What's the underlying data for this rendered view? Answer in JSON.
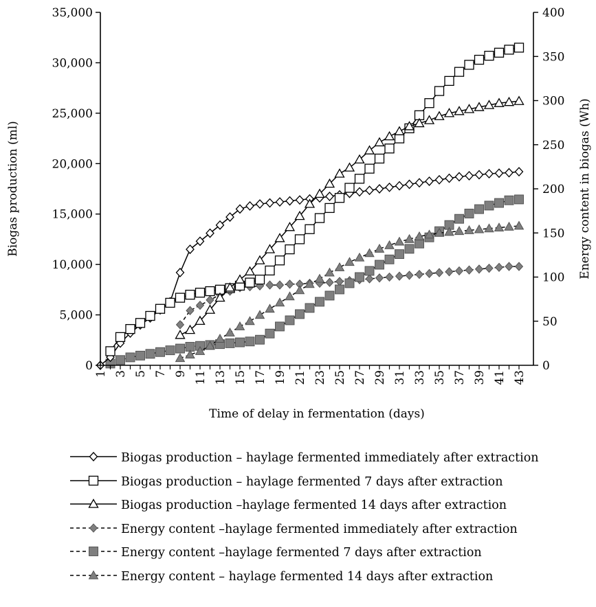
{
  "chart_data": {
    "type": "line",
    "title": "",
    "xlabel": "Time of delay in fermentation (days)",
    "ylabel_left": "Biogas production (ml)",
    "ylabel_right": "Energy content in biogas (Wh)",
    "x": [
      1,
      2,
      3,
      4,
      5,
      6,
      7,
      8,
      9,
      10,
      11,
      12,
      13,
      14,
      15,
      16,
      17,
      18,
      19,
      20,
      21,
      22,
      23,
      24,
      25,
      26,
      27,
      28,
      29,
      30,
      31,
      32,
      33,
      34,
      35,
      36,
      37,
      38,
      39,
      40,
      41,
      42,
      43
    ],
    "x_ticks": [
      1,
      3,
      5,
      7,
      9,
      11,
      13,
      15,
      17,
      19,
      21,
      23,
      25,
      27,
      29,
      31,
      33,
      35,
      37,
      39,
      41,
      43
    ],
    "ylim_left": [
      0,
      35000
    ],
    "yticks_left": [
      0,
      5000,
      10000,
      15000,
      20000,
      25000,
      30000,
      35000
    ],
    "ytick_labels_left": [
      "0",
      "5,000",
      "10,000",
      "15,000",
      "20,000",
      "25,000",
      "30,000",
      "35,000"
    ],
    "ylim_right": [
      0,
      400
    ],
    "yticks_right": [
      0,
      50,
      100,
      150,
      200,
      250,
      300,
      350,
      400
    ],
    "ytick_labels_right": [
      "0",
      "50",
      "100",
      "150",
      "200",
      "250",
      "300",
      "350",
      "400"
    ],
    "legend_position": "bottom",
    "series": [
      {
        "name": "Biogas production – haylage fermented immediately after extraction",
        "axis": "left",
        "marker": "diamond",
        "line": "solid",
        "fill": "#ffffff",
        "values": [
          0,
          800,
          2200,
          3200,
          4000,
          4700,
          5500,
          6300,
          9200,
          11500,
          12300,
          13100,
          13900,
          14700,
          15500,
          15800,
          16000,
          16100,
          16200,
          16300,
          16400,
          16500,
          16600,
          16750,
          16900,
          17050,
          17200,
          17350,
          17500,
          17650,
          17800,
          17950,
          18100,
          18250,
          18400,
          18550,
          18700,
          18800,
          18900,
          19000,
          19050,
          19100,
          19200
        ]
      },
      {
        "name": "Biogas production – haylage fermented 7 days after extraction",
        "axis": "left",
        "marker": "square",
        "line": "solid",
        "fill": "#ffffff",
        "values": [
          null,
          1400,
          2800,
          3600,
          4200,
          4900,
          5600,
          6200,
          6700,
          7000,
          7200,
          7350,
          7500,
          7650,
          7900,
          8200,
          8500,
          9400,
          10400,
          11500,
          12500,
          13500,
          14600,
          15600,
          16600,
          17600,
          18500,
          19500,
          20500,
          21500,
          22500,
          23500,
          24800,
          26000,
          27200,
          28200,
          29100,
          29800,
          30300,
          30700,
          31000,
          31300,
          31500
        ]
      },
      {
        "name": "Biogas production –haylage fermented 14 days after extraction",
        "axis": "left",
        "marker": "triangle",
        "line": "solid",
        "fill": "#ffffff",
        "values": [
          null,
          null,
          null,
          null,
          null,
          null,
          null,
          null,
          3000,
          3500,
          4400,
          5500,
          6700,
          7700,
          8500,
          9300,
          10400,
          11500,
          12600,
          13700,
          14800,
          16000,
          17000,
          18000,
          19000,
          19600,
          20400,
          21300,
          22100,
          22700,
          23200,
          23700,
          24000,
          24300,
          24700,
          25000,
          25200,
          25400,
          25600,
          25800,
          26000,
          26100,
          26200
        ]
      },
      {
        "name": "Energy content –haylage fermented immediately after extraction",
        "axis": "right",
        "marker": "diamond",
        "line": "dashed",
        "fill": "#7f7f7f",
        "values": [
          null,
          null,
          null,
          null,
          null,
          null,
          null,
          null,
          46,
          62,
          68,
          74,
          80,
          84,
          88,
          89,
          90,
          91,
          91,
          92,
          92,
          93,
          93,
          94,
          95,
          96,
          97,
          98,
          99,
          100,
          101,
          102,
          103,
          104,
          105,
          106,
          107,
          108,
          109,
          110,
          111,
          112,
          112
        ]
      },
      {
        "name": "Energy content –haylage fermented 7 days after extraction",
        "axis": "right",
        "marker": "square",
        "line": "dashed",
        "fill": "#7f7f7f",
        "values": [
          null,
          2,
          6,
          9,
          11,
          13,
          15,
          17,
          19,
          21,
          22,
          23,
          24,
          25,
          26,
          27,
          29,
          36,
          44,
          51,
          58,
          65,
          72,
          79,
          86,
          93,
          100,
          107,
          114,
          120,
          126,
          132,
          138,
          145,
          152,
          159,
          166,
          172,
          177,
          181,
          184,
          187,
          188
        ]
      },
      {
        "name": "Energy content – haylage fermented 14 days after extraction",
        "axis": "right",
        "marker": "triangle",
        "line": "dashed",
        "fill": "#7f7f7f",
        "values": [
          null,
          null,
          null,
          null,
          null,
          null,
          null,
          null,
          8,
          12,
          16,
          22,
          30,
          37,
          44,
          50,
          57,
          64,
          71,
          78,
          85,
          92,
          98,
          105,
          111,
          117,
          122,
          127,
          132,
          136,
          140,
          143,
          146,
          148,
          150,
          151,
          152,
          153,
          154,
          155,
          156,
          157,
          158
        ]
      }
    ]
  }
}
